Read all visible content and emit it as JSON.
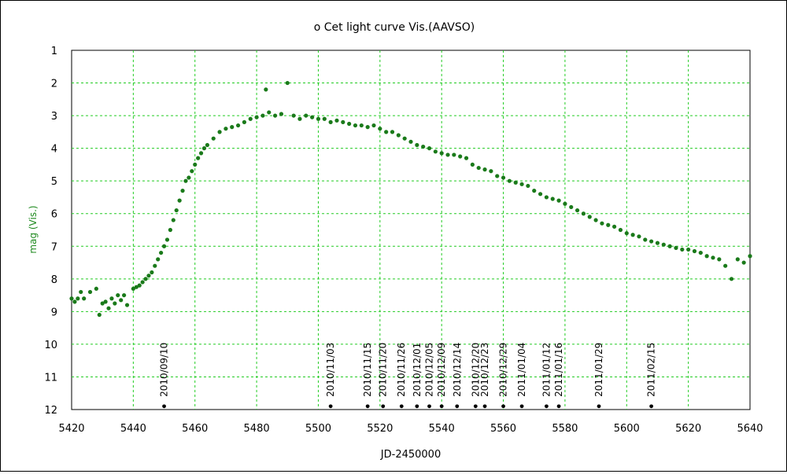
{
  "chart_data": {
    "type": "scatter",
    "title": "o Cet light curve Vis.(AAVSO)",
    "xlabel": "JD-2450000",
    "ylabel": "mag (Vis.)",
    "xlim": [
      5420,
      5640
    ],
    "ylim": [
      12,
      1
    ],
    "y_inverted": true,
    "grid": true,
    "x_ticks": [
      5420,
      5440,
      5460,
      5480,
      5500,
      5520,
      5540,
      5560,
      5580,
      5600,
      5620,
      5640
    ],
    "y_ticks": [
      1,
      2,
      3,
      4,
      5,
      6,
      7,
      8,
      9,
      10,
      11,
      12
    ],
    "colors": {
      "points": "#1a7a1a",
      "grid": "#22cc22",
      "markers": "#000000"
    },
    "series": [
      {
        "x": [
          5420,
          5421,
          5422,
          5423,
          5424,
          5426,
          5428,
          5429,
          5430,
          5431,
          5432,
          5433,
          5434,
          5435,
          5436,
          5437,
          5438,
          5440,
          5441,
          5442,
          5443,
          5444,
          5445,
          5446,
          5447,
          5448,
          5449,
          5450,
          5451,
          5452,
          5453,
          5454,
          5455,
          5456,
          5457,
          5458,
          5459,
          5460,
          5461,
          5462,
          5463,
          5464,
          5466,
          5468,
          5470,
          5472,
          5474,
          5476,
          5478,
          5480,
          5482,
          5483,
          5484,
          5486,
          5488,
          5490,
          5492,
          5494,
          5496,
          5498,
          5500,
          5502,
          5504,
          5506,
          5508,
          5510,
          5512,
          5514,
          5516,
          5518,
          5520,
          5522,
          5524,
          5526,
          5528,
          5530,
          5532,
          5534,
          5536,
          5538,
          5540,
          5542,
          5544,
          5546,
          5548,
          5550,
          5552,
          5554,
          5556,
          5558,
          5560,
          5562,
          5564,
          5566,
          5568,
          5570,
          5572,
          5574,
          5576,
          5578,
          5580,
          5582,
          5584,
          5586,
          5588,
          5590,
          5592,
          5594,
          5596,
          5598,
          5600,
          5602,
          5604,
          5606,
          5608,
          5610,
          5612,
          5614,
          5616,
          5618,
          5620,
          5622,
          5624,
          5626,
          5628,
          5630,
          5632,
          5634,
          5636,
          5638,
          5640
        ],
        "y": [
          8.6,
          8.7,
          8.6,
          8.4,
          8.6,
          8.4,
          8.3,
          9.1,
          8.75,
          8.7,
          8.9,
          8.6,
          8.75,
          8.5,
          8.65,
          8.5,
          8.8,
          8.3,
          8.25,
          8.2,
          8.1,
          8.0,
          7.9,
          7.8,
          7.6,
          7.4,
          7.2,
          7.0,
          6.8,
          6.5,
          6.2,
          5.9,
          5.6,
          5.3,
          5.0,
          4.9,
          4.7,
          4.5,
          4.3,
          4.15,
          4.0,
          3.9,
          3.7,
          3.5,
          3.4,
          3.35,
          3.3,
          3.2,
          3.1,
          3.05,
          3.0,
          2.2,
          2.9,
          3.0,
          2.95,
          2.0,
          3.0,
          3.1,
          3.0,
          3.05,
          3.1,
          3.1,
          3.2,
          3.15,
          3.2,
          3.25,
          3.3,
          3.3,
          3.35,
          3.3,
          3.4,
          3.5,
          3.5,
          3.6,
          3.7,
          3.8,
          3.9,
          3.95,
          4.0,
          4.1,
          4.15,
          4.2,
          4.2,
          4.25,
          4.3,
          4.5,
          4.6,
          4.65,
          4.7,
          4.85,
          4.9,
          5.0,
          5.05,
          5.1,
          5.15,
          5.3,
          5.4,
          5.5,
          5.55,
          5.6,
          5.7,
          5.8,
          5.9,
          6.0,
          6.1,
          6.2,
          6.3,
          6.35,
          6.4,
          6.5,
          6.6,
          6.65,
          6.7,
          6.8,
          6.85,
          6.9,
          6.95,
          7.0,
          7.05,
          7.1,
          7.1,
          7.15,
          7.2,
          7.3,
          7.35,
          7.4,
          7.6,
          8.0,
          7.4,
          7.5,
          7.3
        ]
      }
    ],
    "date_markers": [
      {
        "label": "2010/09/10",
        "x": 5450,
        "y": 11.9
      },
      {
        "label": "2010/11/03",
        "x": 5504,
        "y": 11.9
      },
      {
        "label": "2010/11/15",
        "x": 5516,
        "y": 11.9
      },
      {
        "label": "2010/11/20",
        "x": 5521,
        "y": 11.9
      },
      {
        "label": "2010/11/26",
        "x": 5527,
        "y": 11.9
      },
      {
        "label": "2010/12/01",
        "x": 5532,
        "y": 11.9
      },
      {
        "label": "2010/12/05",
        "x": 5536,
        "y": 11.9
      },
      {
        "label": "2010/12/09",
        "x": 5540,
        "y": 11.9
      },
      {
        "label": "2010/12/14",
        "x": 5545,
        "y": 11.9
      },
      {
        "label": "2010/12/20",
        "x": 5551,
        "y": 11.9
      },
      {
        "label": "2010/12/23",
        "x": 5554,
        "y": 11.9
      },
      {
        "label": "2010/12/29",
        "x": 5560,
        "y": 11.9
      },
      {
        "label": "2011/01/04",
        "x": 5566,
        "y": 11.9
      },
      {
        "label": "2011/01/12",
        "x": 5574,
        "y": 11.9
      },
      {
        "label": "2011/01/16",
        "x": 5578,
        "y": 11.9
      },
      {
        "label": "2011/01/29",
        "x": 5591,
        "y": 11.9
      },
      {
        "label": "2011/02/15",
        "x": 5608,
        "y": 11.9
      }
    ]
  }
}
